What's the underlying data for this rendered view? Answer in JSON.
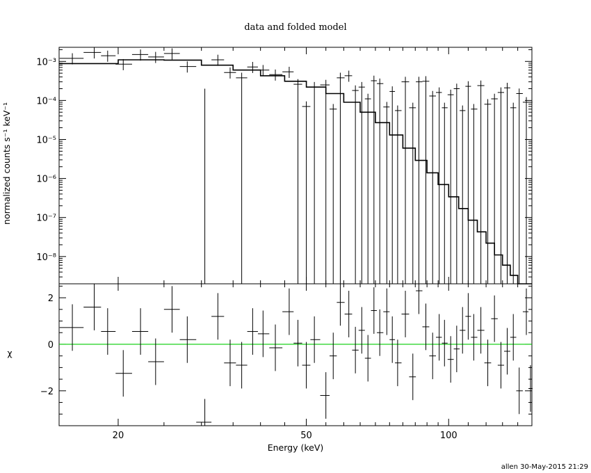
{
  "chart_data": [
    {
      "type": "scatter",
      "panel": "spectrum",
      "title": "data and folded model",
      "xlabel": "Energy (keV)",
      "ylabel": "normalized counts s⁻¹ keV⁻¹",
      "x_scale": "log",
      "y_scale": "log",
      "xlim": [
        15,
        150
      ],
      "ylim": [
        2e-09,
        0.0023
      ],
      "y_tick_labels": [
        "10⁻⁸",
        "10⁻⁷",
        "10⁻⁶",
        "10⁻⁵",
        "10⁻⁴",
        "10⁻³"
      ],
      "series": [
        {
          "kind": "data",
          "color": "#000000",
          "points": [
            {
              "x": 16.0,
              "y": 0.0012
            },
            {
              "x": 17.8,
              "y": 0.0017
            },
            {
              "x": 19.0,
              "y": 0.0014
            },
            {
              "x": 20.5,
              "y": 0.00085
            },
            {
              "x": 22.3,
              "y": 0.0015
            },
            {
              "x": 24.0,
              "y": 0.0013
            },
            {
              "x": 26.0,
              "y": 0.0016
            },
            {
              "x": 28.0,
              "y": 0.00074
            },
            {
              "x": 30.5,
              "y": 0,
              "upper": 0.0002
            },
            {
              "x": 32.5,
              "y": 0.0011
            },
            {
              "x": 34.5,
              "y": 0.00052
            },
            {
              "x": 36.5,
              "y": 0.00038
            },
            {
              "x": 38.5,
              "y": 0.00072
            },
            {
              "x": 40.5,
              "y": 0.0006
            },
            {
              "x": 43.0,
              "y": 0.00046
            },
            {
              "x": 46.0,
              "y": 0.00054
            },
            {
              "x": 48.0,
              "y": 0.00026
            },
            {
              "x": 50.0,
              "y": 7e-05
            },
            {
              "x": 52.0,
              "y": 0.00022
            },
            {
              "x": 55.0,
              "y": 0.00025
            },
            {
              "x": 57.0,
              "y": 6e-05
            },
            {
              "x": 59.0,
              "y": 0.00038
            },
            {
              "x": 61.5,
              "y": 0.00043
            },
            {
              "x": 63.5,
              "y": 0.00018
            },
            {
              "x": 65.5,
              "y": 0.00022
            },
            {
              "x": 67.5,
              "y": 0.00011
            },
            {
              "x": 69.5,
              "y": 0.00032
            },
            {
              "x": 71.5,
              "y": 0.00027
            },
            {
              "x": 74.0,
              "y": 6.8e-05
            },
            {
              "x": 76.0,
              "y": 0.00017
            },
            {
              "x": 78.0,
              "y": 5.5e-05
            },
            {
              "x": 81.0,
              "y": 0.0003
            },
            {
              "x": 84.0,
              "y": 6.5e-05
            },
            {
              "x": 86.5,
              "y": 0.0003
            },
            {
              "x": 89.5,
              "y": 0.00031
            },
            {
              "x": 92.5,
              "y": 0.00013
            },
            {
              "x": 95.5,
              "y": 0.00016
            },
            {
              "x": 98.0,
              "y": 6.5e-05
            },
            {
              "x": 101.0,
              "y": 0.00014
            },
            {
              "x": 104.0,
              "y": 0.0002
            },
            {
              "x": 107.0,
              "y": 5.5e-05
            },
            {
              "x": 110.0,
              "y": 0.00023
            },
            {
              "x": 113.0,
              "y": 6e-05
            },
            {
              "x": 117.0,
              "y": 0.00024
            },
            {
              "x": 121.0,
              "y": 8e-05
            },
            {
              "x": 125.0,
              "y": 0.00011
            },
            {
              "x": 129.0,
              "y": 0.00016
            },
            {
              "x": 133.0,
              "y": 0.00021
            },
            {
              "x": 137.0,
              "y": 6.5e-05
            },
            {
              "x": 141.0,
              "y": 0.00015
            },
            {
              "x": 146.0,
              "y": 9e-05
            }
          ]
        },
        {
          "kind": "folded-model",
          "color": "#000000",
          "points": [
            {
              "x": 15.0,
              "y": 0.00088
            },
            {
              "x": 20.0,
              "y": 0.0011
            },
            {
              "x": 25.0,
              "y": 0.00108
            },
            {
              "x": 30.0,
              "y": 0.0008
            },
            {
              "x": 35.0,
              "y": 0.0006
            },
            {
              "x": 40.0,
              "y": 0.00043
            },
            {
              "x": 45.0,
              "y": 0.00031
            },
            {
              "x": 50.0,
              "y": 0.00022
            },
            {
              "x": 55.0,
              "y": 0.00015
            },
            {
              "x": 60.0,
              "y": 9e-05
            },
            {
              "x": 65.0,
              "y": 5e-05
            },
            {
              "x": 70.0,
              "y": 2.7e-05
            },
            {
              "x": 75.0,
              "y": 1.3e-05
            },
            {
              "x": 80.0,
              "y": 6e-06
            },
            {
              "x": 85.0,
              "y": 2.9e-06
            },
            {
              "x": 90.0,
              "y": 1.4e-06
            },
            {
              "x": 95.0,
              "y": 7e-07
            },
            {
              "x": 100.0,
              "y": 3.4e-07
            },
            {
              "x": 105.0,
              "y": 1.7e-07
            },
            {
              "x": 110.0,
              "y": 8.5e-08
            },
            {
              "x": 115.0,
              "y": 4.3e-08
            },
            {
              "x": 120.0,
              "y": 2.2e-08
            },
            {
              "x": 125.0,
              "y": 1.1e-08
            },
            {
              "x": 130.0,
              "y": 6e-09
            },
            {
              "x": 135.0,
              "y": 3.3e-09
            },
            {
              "x": 140.0,
              "y": 2e-09
            }
          ]
        }
      ]
    },
    {
      "type": "scatter",
      "panel": "residuals",
      "xlabel": "Energy (keV)",
      "ylabel": "χ",
      "x_scale": "log",
      "xlim": [
        15,
        150
      ],
      "ylim": [
        -3.5,
        2.6
      ],
      "x_tick_labels": [
        "20",
        "50",
        "100"
      ],
      "x_ticks": [
        20,
        50,
        100
      ],
      "y_ticks": [
        -2,
        0,
        2
      ],
      "y_tick_labels": [
        "−2",
        "0",
        "2"
      ],
      "zero_line_color": "#00cc00",
      "series": [
        {
          "kind": "residuals",
          "color": "#000000",
          "points": [
            {
              "x": 16.0,
              "y": 0.72
            },
            {
              "x": 17.8,
              "y": 1.6
            },
            {
              "x": 19.0,
              "y": 0.55
            },
            {
              "x": 20.5,
              "y": -1.25
            },
            {
              "x": 22.3,
              "y": 0.55
            },
            {
              "x": 24.0,
              "y": -0.75
            },
            {
              "x": 26.0,
              "y": 1.5
            },
            {
              "x": 28.0,
              "y": 0.2
            },
            {
              "x": 30.5,
              "y": -3.35
            },
            {
              "x": 32.5,
              "y": 1.2
            },
            {
              "x": 34.5,
              "y": -0.8
            },
            {
              "x": 36.5,
              "y": -0.9
            },
            {
              "x": 38.5,
              "y": 0.55
            },
            {
              "x": 40.5,
              "y": 0.45
            },
            {
              "x": 43.0,
              "y": -0.15
            },
            {
              "x": 46.0,
              "y": 1.4
            },
            {
              "x": 48.0,
              "y": 0.05
            },
            {
              "x": 50.0,
              "y": -0.9
            },
            {
              "x": 52.0,
              "y": 0.2
            },
            {
              "x": 55.0,
              "y": -2.2
            },
            {
              "x": 57.0,
              "y": -0.5
            },
            {
              "x": 59.0,
              "y": 1.8
            },
            {
              "x": 61.5,
              "y": 1.3
            },
            {
              "x": 63.5,
              "y": -0.25
            },
            {
              "x": 65.5,
              "y": 0.6
            },
            {
              "x": 67.5,
              "y": -0.6
            },
            {
              "x": 69.5,
              "y": 1.45
            },
            {
              "x": 71.5,
              "y": 0.5
            },
            {
              "x": 74.0,
              "y": 1.4
            },
            {
              "x": 76.0,
              "y": 0.2
            },
            {
              "x": 78.0,
              "y": -0.8
            },
            {
              "x": 81.0,
              "y": 1.3
            },
            {
              "x": 84.0,
              "y": -1.4
            },
            {
              "x": 86.5,
              "y": 2.3
            },
            {
              "x": 89.5,
              "y": 0.75
            },
            {
              "x": 92.5,
              "y": -0.5
            },
            {
              "x": 95.5,
              "y": 0.3
            },
            {
              "x": 98.0,
              "y": 0.05
            },
            {
              "x": 101.0,
              "y": -0.65
            },
            {
              "x": 104.0,
              "y": -0.2
            },
            {
              "x": 107.0,
              "y": 0.6
            },
            {
              "x": 110.0,
              "y": 1.2
            },
            {
              "x": 113.0,
              "y": 0.3
            },
            {
              "x": 117.0,
              "y": 0.6
            },
            {
              "x": 121.0,
              "y": -0.8
            },
            {
              "x": 125.0,
              "y": 1.1
            },
            {
              "x": 129.0,
              "y": -0.9
            },
            {
              "x": 133.0,
              "y": -0.3
            },
            {
              "x": 137.0,
              "y": 0.3
            },
            {
              "x": 141.0,
              "y": -2.0
            },
            {
              "x": 146.0,
              "y": 1.4
            },
            {
              "x": 149.0,
              "y": -1.9
            }
          ]
        }
      ]
    }
  ],
  "footer": "allen 30-May-2015 21:29"
}
